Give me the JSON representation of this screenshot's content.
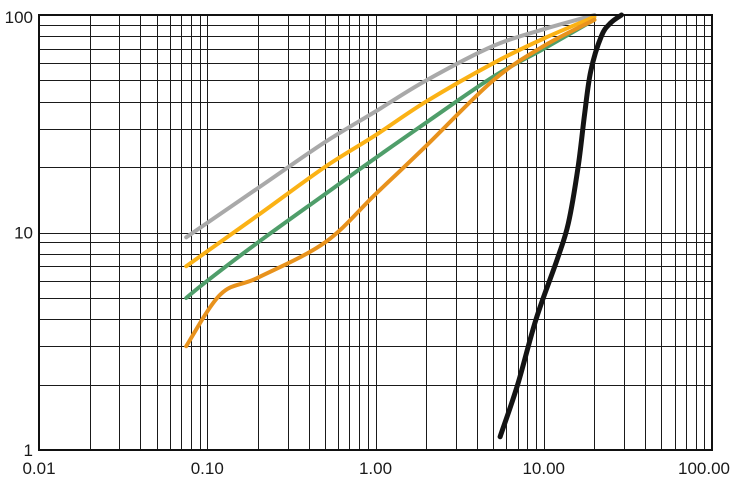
{
  "chart_data": {
    "type": "line",
    "xscale": "log",
    "yscale": "log",
    "xlim": [
      0.01,
      100
    ],
    "ylim": [
      1,
      100
    ],
    "grid": true,
    "x_tick_labels": [
      {
        "value": 0.01,
        "label": "0.01"
      },
      {
        "value": 0.1,
        "label": "0.10"
      },
      {
        "value": 1,
        "label": "1.00"
      },
      {
        "value": 10,
        "label": "10.00"
      },
      {
        "value": 100,
        "label": "100.00"
      }
    ],
    "y_tick_labels": [
      {
        "value": 1,
        "label": "1"
      },
      {
        "value": 10,
        "label": "10"
      },
      {
        "value": 100,
        "label": "100"
      }
    ],
    "series": [
      {
        "color": "#a9a9a9",
        "points": [
          [
            0.075,
            9.5
          ],
          [
            0.2,
            16
          ],
          [
            0.5,
            26
          ],
          [
            1,
            36
          ],
          [
            2,
            50
          ],
          [
            5,
            72
          ],
          [
            10,
            86
          ],
          [
            20,
            100
          ]
        ]
      },
      {
        "color": "#fbb215",
        "points": [
          [
            0.075,
            7
          ],
          [
            0.2,
            12
          ],
          [
            0.5,
            20
          ],
          [
            1,
            28
          ],
          [
            2,
            40
          ],
          [
            5,
            60
          ],
          [
            10,
            78
          ],
          [
            20,
            98
          ]
        ]
      },
      {
        "color": "#4f9e6a",
        "points": [
          [
            0.075,
            5
          ],
          [
            0.1,
            6
          ],
          [
            0.2,
            9
          ],
          [
            0.5,
            15
          ],
          [
            1,
            22
          ],
          [
            2,
            32
          ],
          [
            5,
            52
          ],
          [
            10,
            70
          ],
          [
            20,
            95
          ]
        ]
      },
      {
        "color": "#e8921c",
        "points": [
          [
            0.075,
            3
          ],
          [
            0.12,
            5.2
          ],
          [
            0.2,
            6.2
          ],
          [
            0.5,
            9
          ],
          [
            1,
            15
          ],
          [
            2,
            25
          ],
          [
            5,
            50
          ],
          [
            10,
            72
          ],
          [
            20,
            95
          ]
        ]
      },
      {
        "color": "#141414",
        "points": [
          [
            5.5,
            1.15
          ],
          [
            7,
            2
          ],
          [
            9,
            4
          ],
          [
            12,
            7.5
          ],
          [
            14,
            11
          ],
          [
            16,
            20
          ],
          [
            17.5,
            35
          ],
          [
            19,
            55
          ],
          [
            22,
            80
          ],
          [
            25,
            92
          ],
          [
            29,
            100
          ]
        ]
      }
    ]
  }
}
